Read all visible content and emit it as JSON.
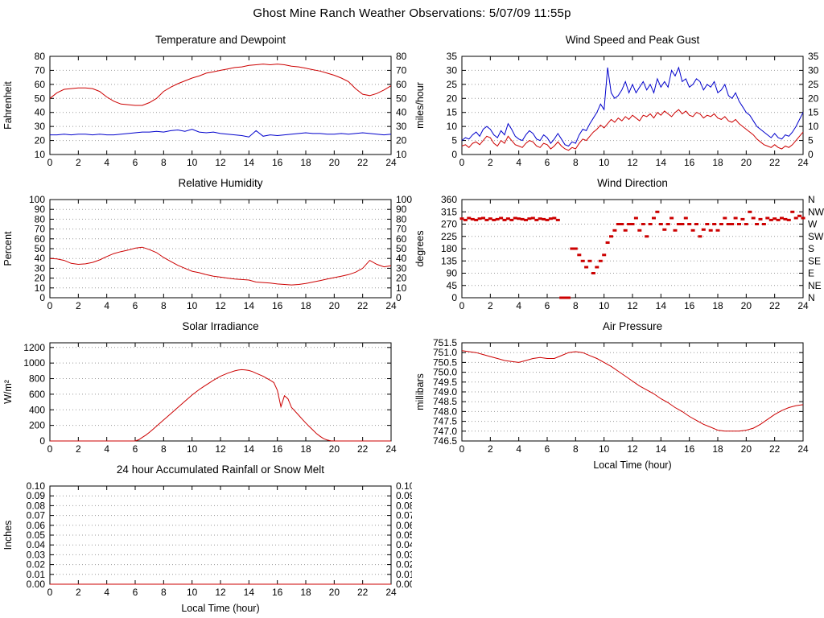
{
  "header": {
    "title": "Ghost Mine Ranch Weather Observations: 5/07/09 11:55p"
  },
  "colors": {
    "red": "#cc0000",
    "blue": "#0000cc",
    "grid": "#999999",
    "axis": "#000000"
  },
  "chart_data": [
    {
      "id": "temperature_dewpoint",
      "type": "line",
      "title": "Temperature and Dewpoint",
      "ylabel": "Fahrenheit",
      "xlabel": "",
      "xlim": [
        0,
        24
      ],
      "ylim": [
        10,
        80
      ],
      "xticks": [
        0,
        2,
        4,
        6,
        8,
        10,
        12,
        14,
        16,
        18,
        20,
        22,
        24
      ],
      "yticks": [
        10,
        20,
        30,
        40,
        50,
        60,
        70,
        80
      ],
      "ytick_labels_right": "mirror",
      "series": [
        {
          "name": "Temperature",
          "color": "#cc0000",
          "type": "line",
          "x0": 0,
          "dx": 0.5,
          "y": [
            50,
            54,
            56.5,
            57,
            57.5,
            57.5,
            57,
            55,
            51,
            48,
            46,
            45.5,
            45,
            45,
            47,
            50,
            55,
            58,
            60.5,
            62.5,
            64.5,
            66,
            68,
            69,
            70,
            71,
            72,
            72.5,
            73.5,
            74,
            74.5,
            74,
            74.5,
            74,
            73,
            72.5,
            71.5,
            70.5,
            69.5,
            68,
            66.5,
            64.5,
            62,
            57,
            53,
            52,
            53.5,
            56,
            59
          ]
        },
        {
          "name": "Dewpoint",
          "color": "#0000cc",
          "type": "line",
          "x0": 0,
          "dx": 0.5,
          "y": [
            24,
            24,
            24.5,
            24,
            24.5,
            24.5,
            24,
            24.5,
            24,
            24,
            24.5,
            25,
            25.5,
            26,
            26,
            26.5,
            26,
            27,
            27.5,
            26.5,
            28,
            26,
            25.5,
            26,
            25,
            24.5,
            24,
            23.5,
            22.5,
            27,
            23,
            24,
            23.5,
            24,
            24.5,
            25,
            25.5,
            25,
            25,
            24.5,
            24.5,
            25,
            24.5,
            25,
            25.5,
            25,
            24.5,
            24,
            24.5
          ]
        }
      ]
    },
    {
      "id": "wind_speed_gust",
      "type": "line",
      "title": "Wind Speed and Peak Gust",
      "ylabel": "miles/hour",
      "xlabel": "",
      "xlim": [
        0,
        24
      ],
      "ylim": [
        0,
        35
      ],
      "xticks": [
        0,
        2,
        4,
        6,
        8,
        10,
        12,
        14,
        16,
        18,
        20,
        22,
        24
      ],
      "yticks": [
        0,
        5,
        10,
        15,
        20,
        25,
        30,
        35
      ],
      "ytick_labels_right": "mirror",
      "series": [
        {
          "name": "Wind Speed",
          "color": "#cc0000",
          "type": "line",
          "x0": 0,
          "dx": 0.25,
          "y": [
            3,
            3.5,
            2.5,
            4,
            4.5,
            3.5,
            5,
            6.5,
            6,
            4,
            3,
            5,
            4,
            6.5,
            5,
            3.5,
            3,
            2.5,
            4,
            5,
            4.5,
            3,
            2.5,
            4,
            3.5,
            2,
            3,
            4.5,
            3,
            2,
            1.5,
            2.5,
            2,
            4,
            5.5,
            5,
            6.5,
            8,
            9,
            10.5,
            9.5,
            11,
            12.5,
            11.5,
            13,
            12,
            13.5,
            12.5,
            14,
            13,
            12,
            14,
            13.5,
            14.5,
            13,
            15,
            14,
            15.5,
            14.5,
            13.5,
            15,
            16,
            14.5,
            15.5,
            14,
            13.5,
            15,
            14.5,
            13,
            14,
            13.5,
            14.5,
            13,
            12.5,
            13.5,
            12,
            11.5,
            12.5,
            11,
            10,
            9,
            8,
            7,
            5.5,
            4.5,
            3.5,
            3,
            2.5,
            3.5,
            2.5,
            2,
            3,
            2.5,
            3.5,
            5,
            6.5,
            8
          ]
        },
        {
          "name": "Peak Gust",
          "color": "#0000cc",
          "type": "line",
          "x0": 0,
          "dx": 0.25,
          "y": [
            5,
            6,
            5.5,
            7,
            8,
            6.5,
            9,
            10,
            9,
            7,
            6,
            8.5,
            7,
            11,
            9,
            6.5,
            5.5,
            5,
            7,
            8.5,
            7.5,
            5.5,
            5,
            7,
            6,
            4,
            5.5,
            7.5,
            5.5,
            3.5,
            3,
            4.5,
            4,
            7,
            9,
            8.5,
            11,
            13,
            15,
            18,
            16,
            31,
            22,
            20,
            21,
            23,
            26,
            22,
            25,
            22,
            24,
            26,
            23,
            25,
            22,
            27,
            24,
            26,
            24,
            30,
            28,
            31,
            26,
            27,
            24,
            25,
            27,
            26,
            23,
            25,
            24,
            26,
            22,
            23,
            25,
            21,
            20,
            22,
            19,
            17,
            15,
            14,
            12,
            10,
            9,
            8,
            7,
            6,
            7.5,
            6,
            5.5,
            7,
            6.5,
            8,
            10,
            12.5,
            15
          ]
        }
      ]
    },
    {
      "id": "relative_humidity",
      "type": "line",
      "title": "Relative Humidity",
      "ylabel": "Percent",
      "xlabel": "",
      "xlim": [
        0,
        24
      ],
      "ylim": [
        0,
        100
      ],
      "xticks": [
        0,
        2,
        4,
        6,
        8,
        10,
        12,
        14,
        16,
        18,
        20,
        22,
        24
      ],
      "yticks": [
        0,
        10,
        20,
        30,
        40,
        50,
        60,
        70,
        80,
        90,
        100
      ],
      "ytick_labels_right": "mirror",
      "series": [
        {
          "name": "Relative Humidity",
          "color": "#cc0000",
          "type": "line",
          "x0": 0,
          "dx": 0.5,
          "y": [
            40,
            39.5,
            38,
            35,
            34,
            34.5,
            36,
            38.5,
            42,
            45,
            47,
            48.5,
            50.5,
            51.5,
            49,
            46,
            41,
            37,
            33,
            30,
            27,
            25.5,
            23.5,
            22,
            21,
            20,
            19,
            18.5,
            18,
            16,
            15.5,
            15,
            14,
            13.5,
            13,
            13.5,
            14.5,
            16,
            17.5,
            19,
            20.5,
            22,
            23.5,
            26,
            30,
            38,
            34,
            31.5,
            32.5
          ]
        }
      ]
    },
    {
      "id": "wind_direction",
      "type": "scatter",
      "title": "Wind Direction",
      "ylabel": "degrees",
      "xlabel": "",
      "xlim": [
        0,
        24
      ],
      "ylim": [
        0,
        360
      ],
      "xticks": [
        0,
        2,
        4,
        6,
        8,
        10,
        12,
        14,
        16,
        18,
        20,
        22,
        24
      ],
      "yticks": [
        0,
        45,
        90,
        135,
        180,
        225,
        270,
        315,
        360
      ],
      "ytick_labels_right": [
        "N",
        "NE",
        "E",
        "SE",
        "S",
        "SW",
        "W",
        "NW",
        "N"
      ],
      "series": [
        {
          "name": "Wind Direction",
          "color": "#cc0000",
          "type": "scatter",
          "x0": 0,
          "dx": 0.25,
          "y": [
            290,
            285,
            292,
            288,
            285,
            290,
            292,
            285,
            290,
            285,
            288,
            292,
            285,
            290,
            285,
            292,
            290,
            288,
            285,
            290,
            292,
            285,
            290,
            288,
            285,
            290,
            292,
            285,
            0,
            0,
            0,
            180,
            180,
            157,
            135,
            112,
            135,
            90,
            112,
            135,
            157,
            202,
            225,
            247,
            270,
            270,
            247,
            270,
            270,
            292,
            247,
            270,
            225,
            270,
            292,
            315,
            270,
            250,
            270,
            292,
            247,
            270,
            270,
            292,
            270,
            247,
            270,
            225,
            250,
            270,
            247,
            270,
            247,
            270,
            292,
            270,
            270,
            292,
            270,
            288,
            270,
            315,
            292,
            270,
            288,
            270,
            292,
            285,
            290,
            285,
            292,
            288,
            285,
            315,
            292,
            300,
            292
          ]
        }
      ]
    },
    {
      "id": "solar_irradiance",
      "type": "line",
      "title": "Solar Irradiance",
      "ylabel": "W/m²",
      "xlabel": "",
      "xlim": [
        0,
        24
      ],
      "ylim": [
        0,
        1260
      ],
      "xticks": [
        0,
        2,
        4,
        6,
        8,
        10,
        12,
        14,
        16,
        18,
        20,
        22,
        24
      ],
      "yticks": [
        0,
        200,
        400,
        600,
        800,
        1000,
        1200
      ],
      "ytick_labels_right": null,
      "series": [
        {
          "name": "Solar Irradiance",
          "color": "#cc0000",
          "type": "line",
          "x0": 0,
          "dx": 0.25,
          "y": [
            0,
            0,
            0,
            0,
            0,
            0,
            0,
            0,
            0,
            0,
            0,
            0,
            0,
            0,
            0,
            0,
            0,
            0,
            0,
            0,
            0,
            0,
            0,
            0,
            0,
            15,
            45,
            75,
            110,
            150,
            190,
            230,
            270,
            310,
            350,
            390,
            430,
            470,
            510,
            550,
            590,
            625,
            660,
            690,
            720,
            750,
            780,
            805,
            830,
            850,
            870,
            885,
            900,
            910,
            915,
            912,
            905,
            890,
            870,
            850,
            830,
            805,
            780,
            750,
            650,
            440,
            580,
            540,
            430,
            380,
            330,
            280,
            230,
            185,
            140,
            95,
            60,
            30,
            12,
            3,
            0,
            0,
            0,
            0,
            0,
            0,
            0,
            0,
            0,
            0,
            0,
            0,
            0,
            0,
            0,
            0,
            0
          ]
        }
      ]
    },
    {
      "id": "air_pressure",
      "type": "line",
      "title": "Air Pressure",
      "ylabel": "millibars",
      "xlabel": "Local Time (hour)",
      "xlim": [
        0,
        24
      ],
      "ylim": [
        746.5,
        751.5
      ],
      "xticks": [
        0,
        2,
        4,
        6,
        8,
        10,
        12,
        14,
        16,
        18,
        20,
        22,
        24
      ],
      "yticks": [
        746.5,
        747,
        747.5,
        748,
        748.5,
        749,
        749.5,
        750,
        750.5,
        751,
        751.5
      ],
      "ytick_labels": [
        "746.5",
        "747.0",
        "747.5",
        "748.0",
        "748.5",
        "749.0",
        "749.5",
        "750.0",
        "750.5",
        "751.0",
        "751.5"
      ],
      "ytick_labels_right": null,
      "series": [
        {
          "name": "Air Pressure",
          "color": "#cc0000",
          "type": "line",
          "x0": 0,
          "dx": 0.5,
          "y": [
            751.1,
            751.05,
            751.0,
            750.9,
            750.8,
            750.7,
            750.6,
            750.55,
            750.5,
            750.6,
            750.7,
            750.75,
            750.7,
            750.7,
            750.85,
            751.0,
            751.05,
            751.0,
            750.85,
            750.7,
            750.5,
            750.3,
            750.05,
            749.8,
            749.55,
            749.3,
            749.1,
            748.9,
            748.65,
            748.45,
            748.2,
            748.0,
            747.75,
            747.55,
            747.35,
            747.2,
            747.05,
            747.0,
            747.0,
            747.0,
            747.05,
            747.15,
            747.35,
            747.6,
            747.85,
            748.05,
            748.2,
            748.3,
            748.35
          ]
        }
      ]
    },
    {
      "id": "rainfall",
      "type": "line",
      "title": "24 hour Accumulated Rainfall or Snow Melt",
      "ylabel": "Inches",
      "xlabel": "Local Time (hour)",
      "xlim": [
        0,
        24
      ],
      "ylim": [
        0,
        0.1
      ],
      "xticks": [
        0,
        2,
        4,
        6,
        8,
        10,
        12,
        14,
        16,
        18,
        20,
        22,
        24
      ],
      "yticks": [
        0,
        0.01,
        0.02,
        0.03,
        0.04,
        0.05,
        0.06,
        0.07,
        0.08,
        0.09,
        0.1
      ],
      "ytick_labels": [
        "0.00",
        "0.01",
        "0.02",
        "0.03",
        "0.04",
        "0.05",
        "0.06",
        "0.07",
        "0.08",
        "0.09",
        "0.10"
      ],
      "ytick_labels_right": "mirror",
      "series": [
        {
          "name": "Rainfall",
          "color": "#cc0000",
          "type": "line",
          "x": [
            0,
            24
          ],
          "y": [
            0,
            0
          ]
        }
      ]
    }
  ]
}
